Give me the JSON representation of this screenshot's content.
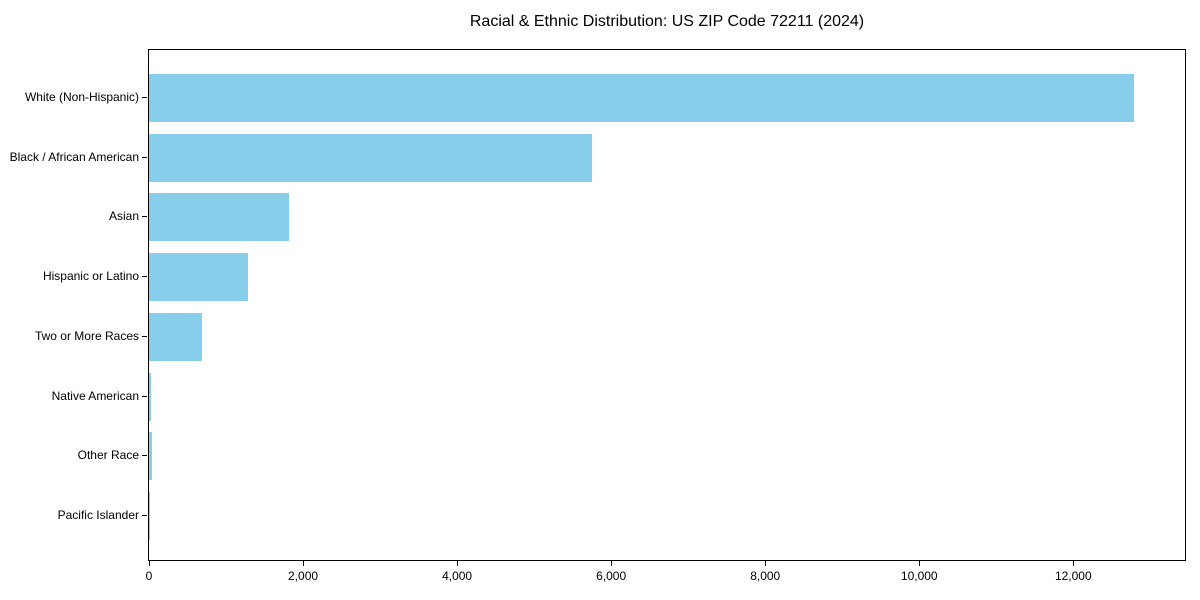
{
  "chart_data": {
    "type": "bar",
    "orientation": "horizontal",
    "title": "Racial & Ethnic Distribution: US ZIP Code 72211 (2024)",
    "categories": [
      "White (Non-Hispanic)",
      "Black / African American",
      "Asian",
      "Hispanic or Latino",
      "Two or More Races",
      "Native American",
      "Other Race",
      "Pacific Islander"
    ],
    "values": [
      12790,
      5750,
      1820,
      1280,
      685,
      30,
      40,
      5
    ],
    "xlabel": "",
    "ylabel": "",
    "xlim": [
      0,
      13450
    ],
    "x_ticks": [
      {
        "value": 0,
        "label": "0"
      },
      {
        "value": 2000,
        "label": "2,000"
      },
      {
        "value": 4000,
        "label": "4,000"
      },
      {
        "value": 6000,
        "label": "6,000"
      },
      {
        "value": 8000,
        "label": "8,000"
      },
      {
        "value": 10000,
        "label": "10,000"
      },
      {
        "value": 12000,
        "label": "12,000"
      }
    ],
    "bar_color": "#87CEEB",
    "background_color": "#FFFFFF",
    "spine_color": "#000000",
    "text_color": "#000000",
    "grid": false,
    "legend": "none"
  }
}
